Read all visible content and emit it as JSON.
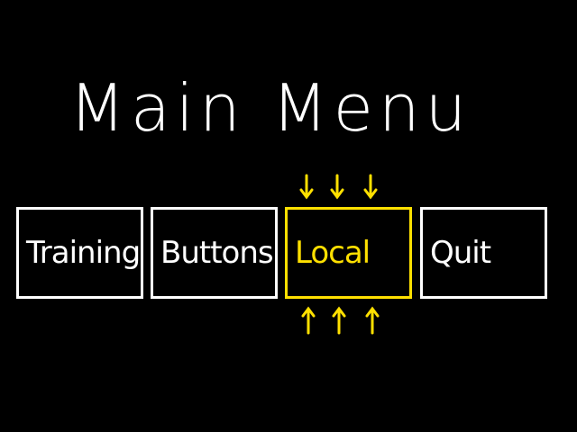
{
  "title": "Main Menu",
  "buttons": [
    {
      "label": "Training",
      "selected": false
    },
    {
      "label": "Buttons",
      "selected": false
    },
    {
      "label": "Local",
      "selected": true
    },
    {
      "label": "Quit",
      "selected": false
    }
  ]
}
